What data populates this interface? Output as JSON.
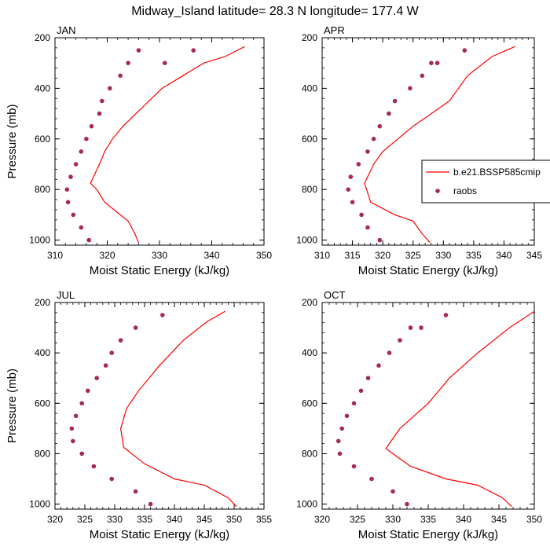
{
  "figure": {
    "title": "Midway_Island  latitude= 28.3 N longitude= 177.4 W"
  },
  "colors": {
    "model_line": "#ff0000",
    "obs_marker": "#a52a56",
    "axis": "#000000"
  },
  "legend": {
    "placement": "right-middle",
    "entries": [
      {
        "label": "b.e21.BSSP585cmip",
        "kind": "line",
        "color": "#ff0000"
      },
      {
        "label": "raobs",
        "kind": "marker",
        "color": "#a52a56"
      }
    ]
  },
  "chart_data": [
    {
      "type": "line",
      "panel": "JAN",
      "xlabel": "Moist Static Energy (kJ/kg)",
      "ylabel": "Pressure (mb)",
      "xlim": [
        310,
        350
      ],
      "ylim": [
        1020,
        200
      ],
      "xticks": [
        310,
        320,
        330,
        340,
        350
      ],
      "yticks": [
        200,
        400,
        600,
        800,
        1000
      ],
      "series": [
        {
          "name": "b.e21.BSSP585cmip",
          "x": [
            326.0,
            325.3,
            324.0,
            322.5,
            319.5,
            318.0,
            316.8,
            318.5,
            319.5,
            321.0,
            323.0,
            325.5,
            328.0,
            330.5,
            334.5,
            338.5,
            342.5,
            346.3
          ],
          "y": [
            1010,
            975,
            925,
            900,
            850,
            800,
            775,
            700,
            650,
            600,
            550,
            500,
            450,
            400,
            350,
            300,
            275,
            235
          ]
        },
        {
          "name": "raobs",
          "x": [
            316.5,
            315.0,
            313.5,
            312.5,
            312.3,
            313.0,
            314.0,
            315.0,
            316.0,
            317.0,
            318.5,
            319.0,
            320.5,
            322.5,
            324.0,
            326.0,
            331.0,
            336.5
          ],
          "y": [
            1000,
            950,
            900,
            850,
            800,
            750,
            700,
            650,
            600,
            550,
            500,
            450,
            400,
            350,
            300,
            250,
            300,
            250
          ]
        }
      ]
    },
    {
      "type": "line",
      "panel": "APR",
      "xlabel": "Moist Static Energy (kJ/kg)",
      "ylabel": "",
      "xlim": [
        310,
        345
      ],
      "ylim": [
        1020,
        200
      ],
      "xticks": [
        310,
        315,
        320,
        325,
        330,
        335,
        340,
        345
      ],
      "yticks": [
        200,
        400,
        600,
        800,
        1000
      ],
      "series": [
        {
          "name": "b.e21.BSSP585cmip",
          "x": [
            327.8,
            326.5,
            325.0,
            322.0,
            318.0,
            317.0,
            318.5,
            320.0,
            322.5,
            325.0,
            328.0,
            331.0,
            334.0,
            338.0,
            341.8
          ],
          "y": [
            1010,
            975,
            925,
            900,
            850,
            775,
            700,
            650,
            600,
            550,
            500,
            450,
            350,
            275,
            235
          ]
        },
        {
          "name": "raobs",
          "x": [
            319.5,
            317.5,
            316.5,
            315.0,
            314.3,
            314.7,
            316.0,
            317.5,
            318.5,
            319.5,
            321.0,
            322.0,
            324.5,
            326.5,
            328.0,
            329.0,
            333.5
          ],
          "y": [
            1000,
            950,
            900,
            850,
            800,
            750,
            700,
            650,
            600,
            550,
            500,
            450,
            400,
            350,
            300,
            300,
            250
          ]
        }
      ]
    },
    {
      "type": "line",
      "panel": "JUL",
      "xlabel": "Moist Static Energy (kJ/kg)",
      "ylabel": "Pressure (mb)",
      "xlim": [
        320,
        355
      ],
      "ylim": [
        1020,
        200
      ],
      "xticks": [
        320,
        325,
        330,
        335,
        340,
        345,
        350,
        355
      ],
      "yticks": [
        200,
        400,
        600,
        800,
        1000
      ],
      "series": [
        {
          "name": "b.e21.BSSP585cmip",
          "x": [
            350.4,
            349.0,
            345.0,
            340.0,
            335.0,
            331.5,
            331.0,
            332.0,
            334.0,
            337.5,
            341.5,
            345.5,
            348.5
          ],
          "y": [
            1010,
            975,
            925,
            900,
            840,
            775,
            700,
            620,
            550,
            450,
            350,
            275,
            235
          ]
        },
        {
          "name": "raobs",
          "x": [
            336.0,
            333.5,
            329.5,
            326.5,
            324.5,
            323.0,
            322.8,
            323.5,
            324.5,
            325.5,
            327.0,
            328.5,
            329.5,
            331.0,
            333.5,
            338.0
          ],
          "y": [
            1000,
            950,
            900,
            850,
            800,
            750,
            700,
            650,
            600,
            550,
            500,
            450,
            400,
            350,
            300,
            250
          ]
        }
      ]
    },
    {
      "type": "line",
      "panel": "OCT",
      "xlabel": "Moist Static Energy (kJ/kg)",
      "ylabel": "",
      "xlim": [
        320,
        350
      ],
      "ylim": [
        1020,
        200
      ],
      "xticks": [
        320,
        325,
        330,
        335,
        340,
        345,
        350
      ],
      "yticks": [
        200,
        400,
        600,
        800,
        1000
      ],
      "series": [
        {
          "name": "b.e21.BSSP585cmip",
          "x": [
            346.8,
            345.5,
            342.0,
            337.5,
            332.5,
            331.5,
            329.0,
            331.0,
            333.0,
            335.0,
            338.0,
            342.0,
            346.5,
            350.0
          ],
          "y": [
            1010,
            975,
            925,
            900,
            850,
            830,
            780,
            700,
            650,
            600,
            500,
            400,
            300,
            235
          ]
        },
        {
          "name": "raobs",
          "x": [
            332.0,
            330.0,
            327.0,
            324.5,
            322.5,
            322.3,
            322.8,
            323.5,
            324.5,
            325.5,
            326.5,
            328.0,
            329.5,
            331.0,
            332.5,
            334.0,
            337.5
          ],
          "y": [
            1000,
            950,
            900,
            850,
            800,
            750,
            700,
            650,
            600,
            550,
            500,
            450,
            400,
            350,
            300,
            300,
            250
          ]
        }
      ]
    }
  ]
}
